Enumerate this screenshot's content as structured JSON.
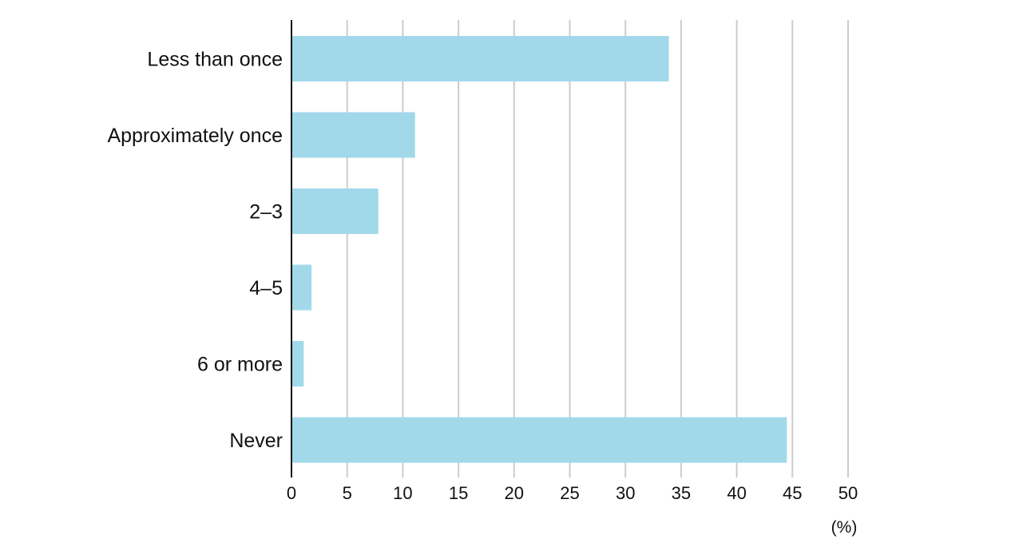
{
  "chart_data": {
    "type": "bar",
    "orientation": "horizontal",
    "categories": [
      "Less than once",
      "Approximately once",
      "2–3",
      "4–5",
      "6 or more",
      "Never"
    ],
    "values": [
      33.9,
      11.1,
      7.8,
      1.8,
      1.1,
      44.5
    ],
    "title": "",
    "xlabel": "",
    "ylabel": "",
    "unit_label": "(%)",
    "xlim": [
      0,
      50
    ],
    "xticks": [
      0,
      5,
      10,
      15,
      20,
      25,
      30,
      35,
      40,
      45,
      50
    ],
    "grid": true,
    "legend": "none",
    "colors": {
      "bar": "#a1d9ea",
      "grid": "#cccccc",
      "axis": "#111111"
    }
  }
}
